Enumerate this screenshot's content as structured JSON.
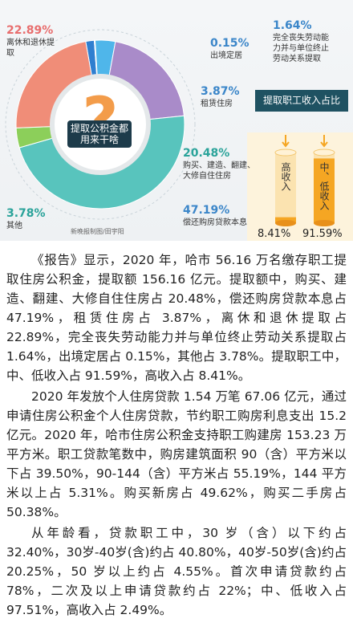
{
  "chart_data": [
    {
      "type": "pie",
      "title": "提取公积金都用来干啥",
      "categories": [
        "完全丧失劳动能力并与单位终止劳动关系提取",
        "出境定居",
        "租赁住房",
        "购买、建造、翻建、大修自住住房",
        "偿还购房贷款本息",
        "其他",
        "离休和退休提取"
      ],
      "values": [
        1.64,
        0.15,
        3.87,
        20.48,
        47.19,
        3.78,
        22.89
      ],
      "value_labels": [
        "1.64%",
        "0.15%",
        "3.87%",
        "20.48%",
        "47.19%",
        "3.78%",
        "22.89%"
      ],
      "colors": [
        "#2f7fd0",
        "#9ed3f0",
        "#4fb6ea",
        "#a98bc9",
        "#58c4bd",
        "#8ccf5a",
        "#f08d78"
      ]
    },
    {
      "type": "bar",
      "title": "提取职工收入占比",
      "categories": [
        "高收入",
        "中、低收入"
      ],
      "values": [
        8.41,
        91.59
      ],
      "value_labels": [
        "8.41%",
        "91.59%"
      ],
      "color": "#f5a623",
      "ylim": [
        0,
        100
      ]
    }
  ],
  "credit": "新晚报制图/田宇阳",
  "article": {
    "paragraphs": [
      "《报告》显示，2020 年，哈市 56.16 万名缴存职工提取住房公积金，提取额 156.16 亿元。提取额中，购买、建造、翻建、大修自住住房占 20.48%，偿还购房贷款本息占 47.19%，租赁住房占 3.87%，离休和退休提取占 22.89%，完全丧失劳动能力并与单位终止劳动关系提取占 1.64%，出境定居占 0.15%，其他占 3.78%。提取职工中，中、低收入占 91.59%，高收入占 8.41%。",
      "2020 年发放个人住房贷款 1.54 万笔 67.06 亿元，通过申请住房公积金个人住房贷款，节约职工购房利息支出 15.2 亿元。2020 年，哈市住房公积金支持职工购建房 153.23 万平方米。职工贷款笔数中，购房建筑面积 90（含）平方米以下占 39.50%，90-144（含）平方米占 55.19%，144 平方米以上占 5.31%。购买新房占 49.62%，购买二手房占 50.38%。",
      "从年龄看，贷款职工中，30 岁（含）以下约占 32.40%，30岁-40岁(含)约占 40.80%，40岁-50岁(含)约占 20.25%，50 岁以上约占 4.55%。首次申请贷款约占 78%，二次及以上申请贷款约占 22%；中、低收入占 97.51%，高收入占 2.49%。"
    ]
  }
}
